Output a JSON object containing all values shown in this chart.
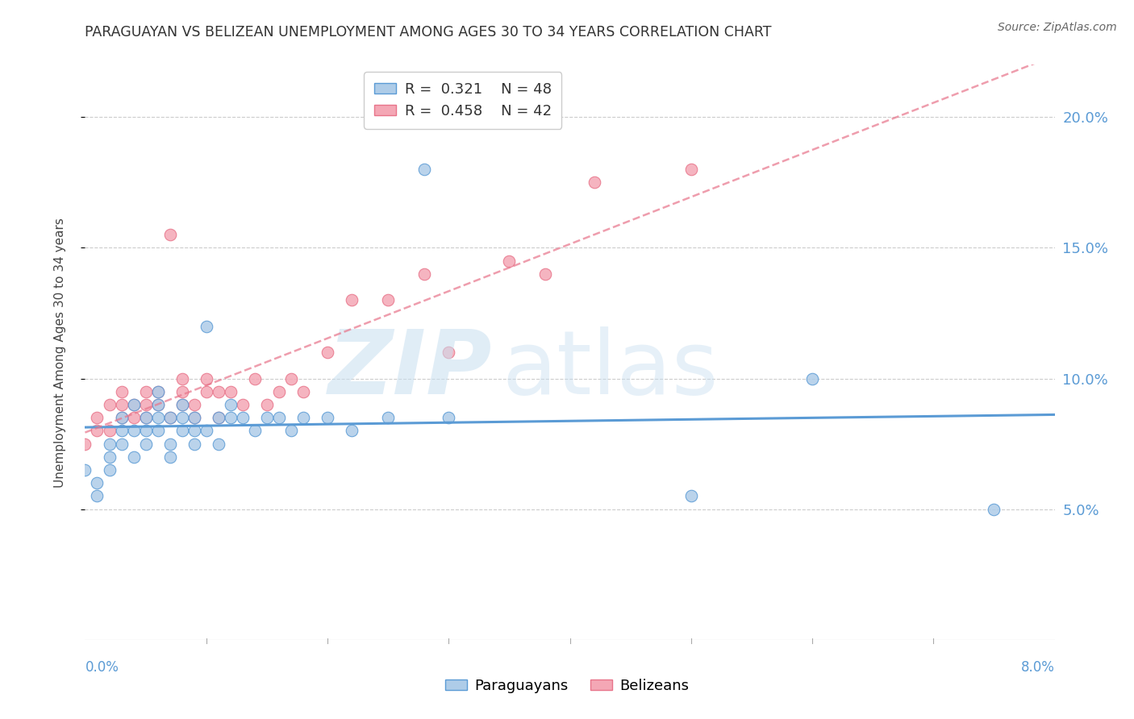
{
  "title": "PARAGUAYAN VS BELIZEAN UNEMPLOYMENT AMONG AGES 30 TO 34 YEARS CORRELATION CHART",
  "source": "Source: ZipAtlas.com",
  "ylabel": "Unemployment Among Ages 30 to 34 years",
  "xlim": [
    0.0,
    0.08
  ],
  "ylim": [
    0.0,
    0.22
  ],
  "yticks": [
    0.05,
    0.1,
    0.15,
    0.2
  ],
  "ytick_labels": [
    "5.0%",
    "10.0%",
    "15.0%",
    "20.0%"
  ],
  "blue_color": "#5b9bd5",
  "pink_color": "#e8748a",
  "blue_fill": "#aecce8",
  "pink_fill": "#f4a7b5",
  "legend_blue_R": "0.321",
  "legend_blue_N": "48",
  "legend_pink_R": "0.458",
  "legend_pink_N": "42",
  "paraguayan_x": [
    0.0,
    0.001,
    0.001,
    0.002,
    0.002,
    0.002,
    0.003,
    0.003,
    0.003,
    0.004,
    0.004,
    0.004,
    0.005,
    0.005,
    0.005,
    0.006,
    0.006,
    0.006,
    0.006,
    0.007,
    0.007,
    0.007,
    0.008,
    0.008,
    0.008,
    0.009,
    0.009,
    0.009,
    0.01,
    0.01,
    0.011,
    0.011,
    0.012,
    0.012,
    0.013,
    0.014,
    0.015,
    0.016,
    0.017,
    0.018,
    0.02,
    0.022,
    0.025,
    0.028,
    0.03,
    0.05,
    0.06,
    0.075
  ],
  "paraguayan_y": [
    0.065,
    0.06,
    0.055,
    0.075,
    0.065,
    0.07,
    0.08,
    0.075,
    0.085,
    0.08,
    0.07,
    0.09,
    0.085,
    0.08,
    0.075,
    0.085,
    0.08,
    0.09,
    0.095,
    0.085,
    0.075,
    0.07,
    0.085,
    0.08,
    0.09,
    0.08,
    0.075,
    0.085,
    0.08,
    0.12,
    0.085,
    0.075,
    0.085,
    0.09,
    0.085,
    0.08,
    0.085,
    0.085,
    0.08,
    0.085,
    0.085,
    0.08,
    0.085,
    0.18,
    0.085,
    0.055,
    0.1,
    0.05
  ],
  "belizean_x": [
    0.0,
    0.001,
    0.001,
    0.002,
    0.002,
    0.003,
    0.003,
    0.003,
    0.004,
    0.004,
    0.005,
    0.005,
    0.005,
    0.006,
    0.006,
    0.007,
    0.007,
    0.008,
    0.008,
    0.008,
    0.009,
    0.009,
    0.01,
    0.01,
    0.011,
    0.011,
    0.012,
    0.013,
    0.014,
    0.015,
    0.016,
    0.017,
    0.018,
    0.02,
    0.022,
    0.025,
    0.028,
    0.03,
    0.035,
    0.038,
    0.042,
    0.05
  ],
  "belizean_y": [
    0.075,
    0.08,
    0.085,
    0.08,
    0.09,
    0.085,
    0.09,
    0.095,
    0.085,
    0.09,
    0.09,
    0.095,
    0.085,
    0.09,
    0.095,
    0.085,
    0.155,
    0.09,
    0.095,
    0.1,
    0.085,
    0.09,
    0.095,
    0.1,
    0.095,
    0.085,
    0.095,
    0.09,
    0.1,
    0.09,
    0.095,
    0.1,
    0.095,
    0.11,
    0.13,
    0.13,
    0.14,
    0.11,
    0.145,
    0.14,
    0.175,
    0.18
  ],
  "background_color": "#ffffff",
  "grid_color": "#cccccc"
}
